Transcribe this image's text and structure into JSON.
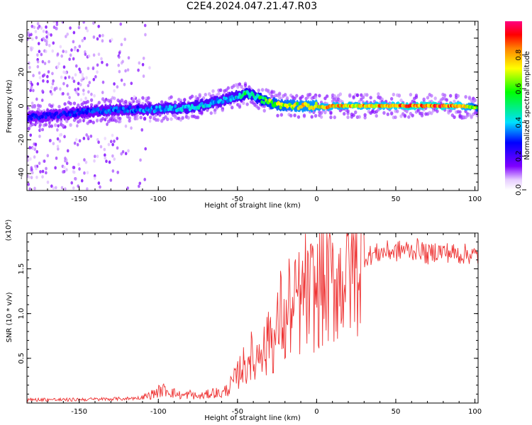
{
  "title": "C2E4.2024.047.21.47.R03",
  "chart_data": [
    {
      "type": "heatmap",
      "xlabel": "Height of straight line (km)",
      "ylabel": "Frequency (Hz)",
      "xlim": [
        -183,
        102
      ],
      "ylim": [
        -50,
        50
      ],
      "xticks": [
        -150,
        -100,
        -50,
        0,
        50,
        100
      ],
      "xtick_labels": [
        "-150",
        "-100",
        "-50",
        "0",
        "50",
        "100"
      ],
      "yticks": [
        -40,
        -20,
        0,
        20,
        40
      ],
      "ytick_labels": [
        "-40",
        "-20",
        "0",
        "20",
        "40"
      ],
      "colorbar": {
        "label": "Normalized spectral amplitude",
        "range": [
          0,
          1
        ],
        "ticks": [
          0.0,
          0.2,
          0.4,
          0.6,
          0.8
        ],
        "tick_labels": [
          "0.0",
          "0.2",
          "0.4",
          "0.6",
          "0.8"
        ],
        "colormap": "rainbow (white-violet-blue-cyan-green-yellow-red-magenta)"
      },
      "ridge": {
        "x": [
          -183,
          -160,
          -140,
          -120,
          -100,
          -80,
          -70,
          -60,
          -50,
          -45,
          -40,
          -35,
          -30,
          -20,
          -10,
          0,
          5,
          10,
          20,
          30,
          40,
          50,
          60,
          70,
          80,
          90,
          102
        ],
        "frequency": [
          -7,
          -5,
          -3,
          -2,
          -2,
          -1,
          1,
          3,
          6,
          7,
          6,
          4,
          2,
          0,
          0,
          0,
          -1,
          0,
          0,
          0,
          0,
          0,
          0,
          0,
          0,
          0,
          -1
        ],
        "amplitude": [
          0.3,
          0.3,
          0.35,
          0.35,
          0.4,
          0.45,
          0.45,
          0.4,
          0.45,
          0.55,
          0.5,
          0.6,
          0.7,
          0.75,
          0.8,
          0.8,
          0.85,
          0.85,
          0.85,
          0.85,
          0.85,
          0.9,
          0.95,
          0.95,
          0.95,
          0.9,
          0.7
        ]
      }
    },
    {
      "type": "line",
      "xlabel": "Height of straight line (km)",
      "ylabel": "SNR (10 * v/v)",
      "y_multiplier": "(x10⁴)",
      "xlim": [
        -183,
        102
      ],
      "ylim": [
        0,
        19000
      ],
      "xticks": [
        -150,
        -100,
        -50,
        0,
        50,
        100
      ],
      "xtick_labels": [
        "-150",
        "-100",
        "-50",
        "0",
        "50",
        "100"
      ],
      "yticks": [
        5000,
        10000,
        15000
      ],
      "ytick_labels": [
        "0.5",
        "1.0",
        "1.5"
      ],
      "series": [
        {
          "color": "#ee3333",
          "x": [
            -183,
            -170,
            -160,
            -150,
            -140,
            -130,
            -120,
            -110,
            -105,
            -100,
            -95,
            -90,
            -85,
            -80,
            -75,
            -70,
            -65,
            -60,
            -55,
            -50,
            -47,
            -45,
            -42,
            -40,
            -37,
            -35,
            -32,
            -30,
            -27,
            -25,
            -22,
            -20,
            -17,
            -15,
            -12,
            -10,
            -8,
            -5,
            -3,
            0,
            3,
            5,
            8,
            10,
            13,
            15,
            18,
            20,
            22,
            25,
            28,
            30,
            35,
            40,
            45,
            50,
            55,
            60,
            65,
            70,
            75,
            80,
            85,
            90,
            95,
            100,
            102
          ],
          "values": [
            350,
            400,
            350,
            400,
            420,
            450,
            500,
            600,
            900,
            1300,
            1500,
            1100,
            800,
            1000,
            700,
            900,
            1200,
            1000,
            1800,
            3000,
            4500,
            3500,
            6000,
            4000,
            5500,
            7500,
            5000,
            9000,
            6500,
            8000,
            10500,
            7500,
            11500,
            9000,
            12500,
            10000,
            13000,
            11500,
            12500,
            12000,
            13500,
            12500,
            14000,
            13000,
            14200,
            13500,
            15000,
            14800,
            15500,
            15300,
            16000,
            16300,
            16600,
            16800,
            17000,
            16900,
            17200,
            17000,
            17300,
            16500,
            17000,
            16900,
            16800,
            16600,
            16700,
            16500,
            16400
          ]
        }
      ]
    }
  ]
}
